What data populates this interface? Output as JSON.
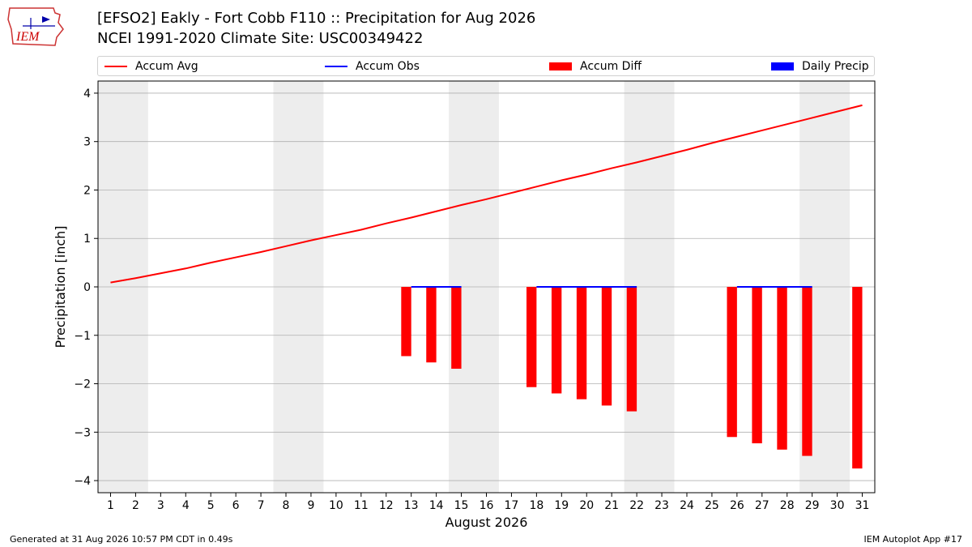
{
  "header": {
    "title_line1": "[EFSO2] Eakly - Fort Cobb F110 :: Precipitation for Aug 2026",
    "title_line2": "NCEI 1991-2020 Climate Site: USC00349422"
  },
  "logo": {
    "text": "IEM",
    "color": "#cc0000"
  },
  "legend": {
    "items": [
      {
        "label": "Accum Avg",
        "kind": "line",
        "color": "#ff0000"
      },
      {
        "label": "Accum Obs",
        "kind": "line",
        "color": "#0000ff"
      },
      {
        "label": "Accum Diff",
        "kind": "patch",
        "color": "#ff0000"
      },
      {
        "label": "Daily Precip",
        "kind": "patch",
        "color": "#0000ff"
      }
    ]
  },
  "footer": {
    "generated": "Generated at 31 Aug 2026 10:57 PM CDT in 0.49s",
    "app": "IEM Autoplot App #17"
  },
  "chart_data": {
    "type": "line",
    "xlabel": "August 2026",
    "ylabel": "Precipitation [inch]",
    "xlim": [
      0.5,
      31.5
    ],
    "ylim": [
      -4.25,
      4.25
    ],
    "yticks": [
      -4,
      -3,
      -2,
      -1,
      0,
      1,
      2,
      3,
      4
    ],
    "ytick_labels": [
      "−4",
      "−3",
      "−2",
      "−1",
      "0",
      "1",
      "2",
      "3",
      "4"
    ],
    "x": [
      1,
      2,
      3,
      4,
      5,
      6,
      7,
      8,
      9,
      10,
      11,
      12,
      13,
      14,
      15,
      16,
      17,
      18,
      19,
      20,
      21,
      22,
      23,
      24,
      25,
      26,
      27,
      28,
      29,
      30,
      31
    ],
    "grid": "horizontal",
    "weekend_shading": [
      [
        1,
        2
      ],
      [
        8,
        9
      ],
      [
        15,
        16
      ],
      [
        22,
        23
      ],
      [
        29,
        30
      ]
    ],
    "colors": {
      "avg": "#ff0000",
      "obs": "#0000ff",
      "diff": "#ff0000",
      "shade": "#ededed",
      "grid": "#b0b0b0"
    },
    "series": [
      {
        "name": "Accum Avg",
        "values": [
          0.09,
          0.18,
          0.28,
          0.38,
          0.5,
          0.61,
          0.72,
          0.84,
          0.96,
          1.07,
          1.18,
          1.31,
          1.43,
          1.56,
          1.69,
          1.81,
          1.94,
          2.07,
          2.2,
          2.32,
          2.45,
          2.57,
          2.7,
          2.83,
          2.97,
          3.1,
          3.23,
          3.36,
          3.49,
          3.62,
          3.75
        ]
      },
      {
        "name": "Accum Obs",
        "segments": [
          {
            "x_start": 13,
            "x_end": 15,
            "value": 0
          },
          {
            "x_start": 18,
            "x_end": 22,
            "value": 0
          },
          {
            "x_start": 26,
            "x_end": 29,
            "value": 0
          }
        ]
      },
      {
        "name": "Accum Diff",
        "points": [
          {
            "x": 13,
            "value": -1.43
          },
          {
            "x": 14,
            "value": -1.56
          },
          {
            "x": 15,
            "value": -1.69
          },
          {
            "x": 18,
            "value": -2.07
          },
          {
            "x": 19,
            "value": -2.2
          },
          {
            "x": 20,
            "value": -2.32
          },
          {
            "x": 21,
            "value": -2.45
          },
          {
            "x": 22,
            "value": -2.57
          },
          {
            "x": 26,
            "value": -3.1
          },
          {
            "x": 27,
            "value": -3.23
          },
          {
            "x": 28,
            "value": -3.36
          },
          {
            "x": 29,
            "value": -3.49
          },
          {
            "x": 31,
            "value": -3.75
          }
        ]
      },
      {
        "name": "Daily Precip",
        "points": []
      }
    ]
  }
}
